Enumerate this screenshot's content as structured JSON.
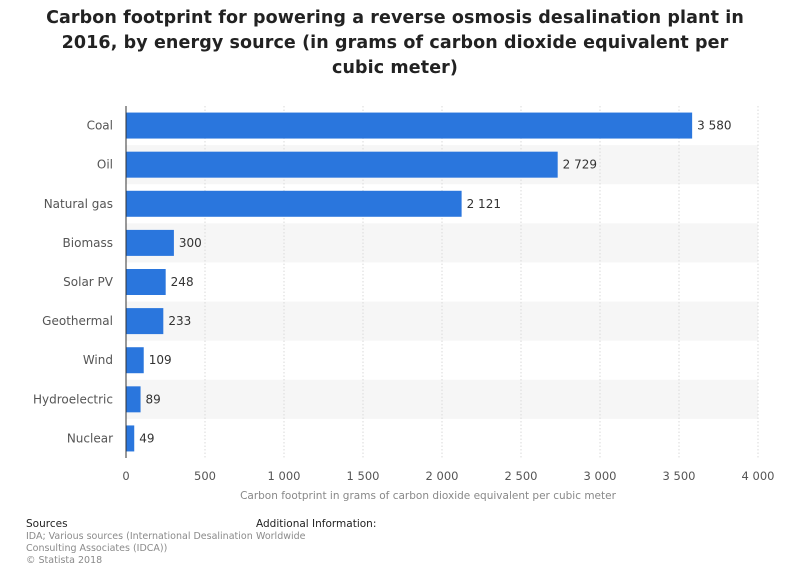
{
  "chart_data": {
    "type": "bar",
    "orientation": "horizontal",
    "title": "Carbon footprint for powering a reverse osmosis desalination plant in 2016, by energy source (in grams of carbon dioxide equivalent per cubic meter)",
    "title_lines": [
      "Carbon footprint for powering a reverse osmosis desalination plant in",
      "2016, by energy source (in grams of carbon dioxide equivalent per",
      "cubic meter)"
    ],
    "categories": [
      "Coal",
      "Oil",
      "Natural gas",
      "Biomass",
      "Solar PV",
      "Geothermal",
      "Wind",
      "Hydroelectric",
      "Nuclear"
    ],
    "values": [
      3580,
      2729,
      2121,
      300,
      248,
      233,
      109,
      89,
      49
    ],
    "value_labels": [
      "3 580",
      "2 729",
      "2 121",
      "300",
      "248",
      "233",
      "109",
      "89",
      "49"
    ],
    "xlabel": "Carbon footprint in grams of carbon dioxide equivalent per cubic meter",
    "ylabel": "",
    "xlim": [
      0,
      4000
    ],
    "ticks": [
      0,
      500,
      1000,
      1500,
      2000,
      2500,
      3000,
      3500,
      4000
    ],
    "tick_labels": [
      "0",
      "500",
      "1 000",
      "1 500",
      "2 000",
      "2 500",
      "3 000",
      "3 500",
      "4 000"
    ],
    "grid": true,
    "bar_color": "#2a76dd"
  },
  "footer": {
    "sources_heading": "Sources",
    "sources_lines": [
      "IDA; Various sources (International Desalination",
      "Consulting Associates (IDCA))",
      "© Statista 2018"
    ],
    "additional_heading": "Additional Information:",
    "additional_lines": [
      "Worldwide"
    ]
  }
}
